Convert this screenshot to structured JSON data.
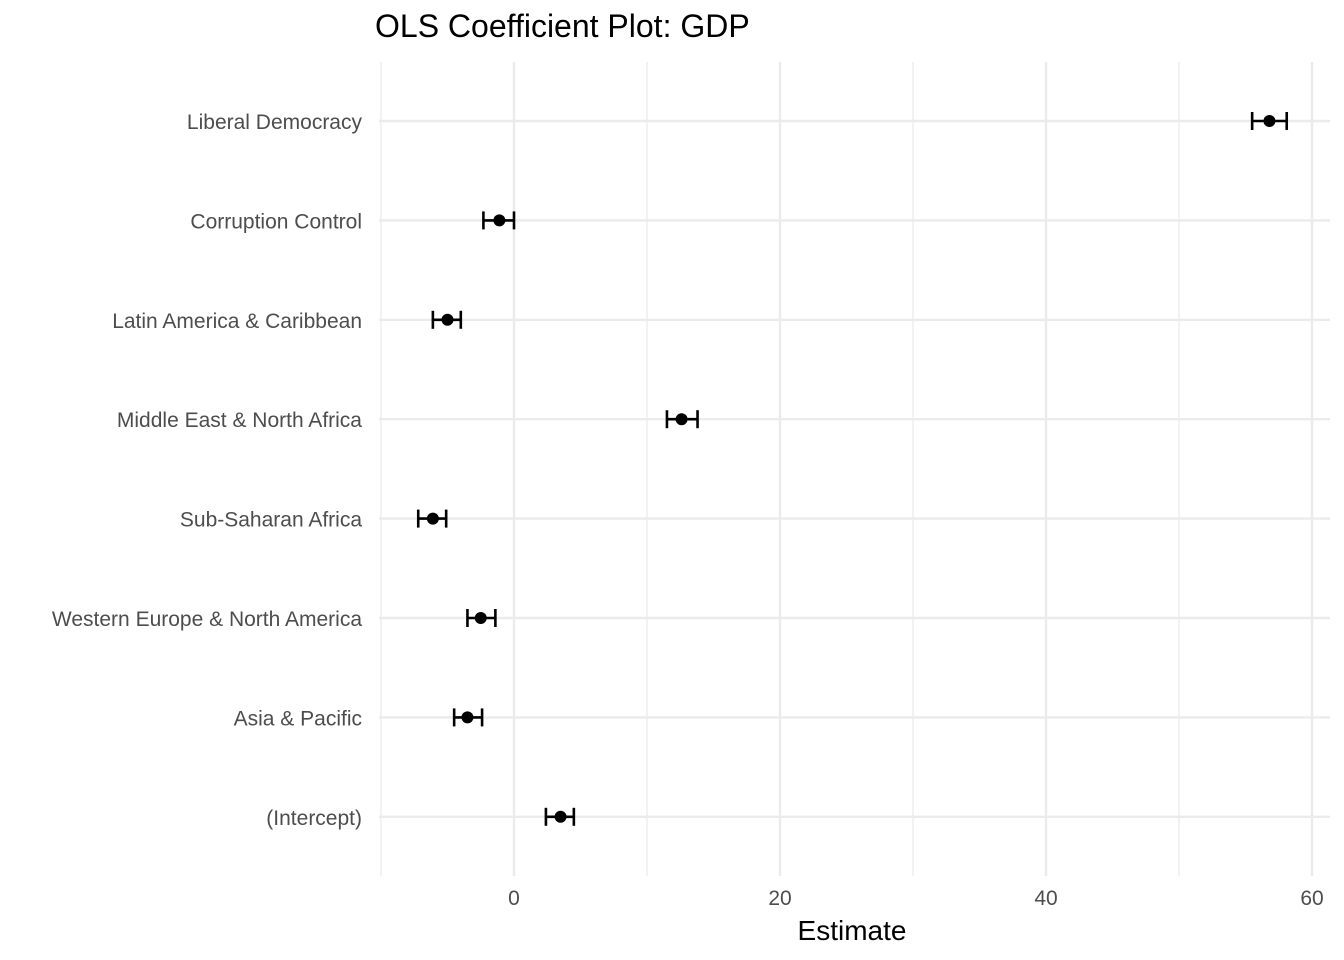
{
  "chart_data": {
    "type": "scatter",
    "title": "OLS Coefficient Plot: GDP",
    "xlabel": "Estimate",
    "ylabel": "",
    "xlim": [
      -10,
      61
    ],
    "x_ticks": [
      0,
      20,
      40,
      60
    ],
    "x_tick_labels": [
      "0",
      "20",
      "40",
      "60"
    ],
    "grid": true,
    "legend": "none",
    "point_color": "#000000",
    "grid_color": "#ebebeb",
    "terms": [
      {
        "label": "Liberal Democracy",
        "estimate": 56.8,
        "low": 55.5,
        "high": 58.1
      },
      {
        "label": "Corruption Control",
        "estimate": -1.1,
        "low": -2.3,
        "high": 0.0
      },
      {
        "label": "Latin America & Caribbean",
        "estimate": -5.0,
        "low": -6.1,
        "high": -4.0
      },
      {
        "label": "Middle East & North Africa",
        "estimate": 12.6,
        "low": 11.5,
        "high": 13.8
      },
      {
        "label": "Sub-Saharan Africa",
        "estimate": -6.1,
        "low": -7.2,
        "high": -5.1
      },
      {
        "label": "Western Europe & North America",
        "estimate": -2.5,
        "low": -3.5,
        "high": -1.4
      },
      {
        "label": "Asia & Pacific",
        "estimate": -3.5,
        "low": -4.5,
        "high": -2.4
      },
      {
        "label": "(Intercept)",
        "estimate": 3.5,
        "low": 2.4,
        "high": 4.5
      }
    ]
  }
}
